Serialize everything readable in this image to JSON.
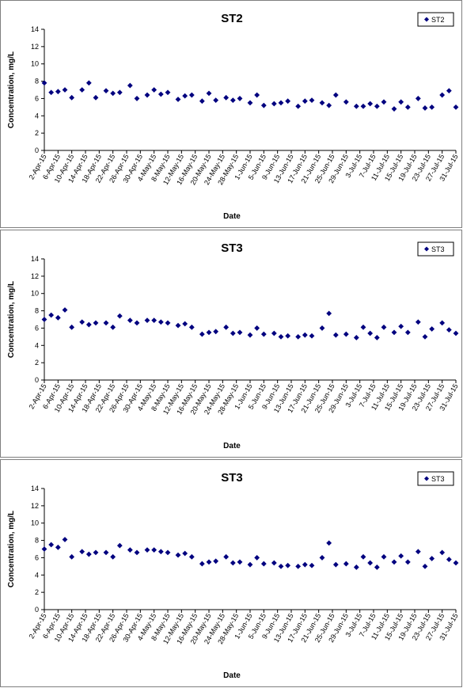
{
  "marker_color": "#00007f",
  "chart_data": [
    {
      "type": "scatter",
      "title": "ST2",
      "xlabel": "Date",
      "ylabel": "Concentration, mg/L",
      "ylim": [
        0,
        14
      ],
      "yticks": [
        0,
        2,
        4,
        6,
        8,
        10,
        12,
        14
      ],
      "xticks": [
        "2-Apr-15",
        "6-Apr-15",
        "10-Apr-15",
        "14-Apr-15",
        "18-Apr-15",
        "22-Apr-15",
        "26-Apr-15",
        "30-Apr-15",
        "4-May-15",
        "8-May-15",
        "12-May-15",
        "16-May-15",
        "20-May-15",
        "24-May-15",
        "28-May-15",
        "1-Jun-15",
        "5-Jun-15",
        "9-Jun-15",
        "13-Jun-15",
        "17-Jun-15",
        "21-Jun-15",
        "25-Jun-15",
        "29-Jun-15",
        "3-Jul-15",
        "7-Jul-15",
        "11-Jul-15",
        "15-Jul-15",
        "19-Jul-15",
        "23-Jul-15",
        "27-Jul-15",
        "31-Jul-15"
      ],
      "grid": false,
      "legend_position": "top-right",
      "series": [
        {
          "name": "ST2",
          "x": [
            "2-Apr-15",
            "4-Apr-15",
            "6-Apr-15",
            "8-Apr-15",
            "10-Apr-15",
            "13-Apr-15",
            "15-Apr-15",
            "17-Apr-15",
            "20-Apr-15",
            "22-Apr-15",
            "24-Apr-15",
            "27-Apr-15",
            "29-Apr-15",
            "2-May-15",
            "4-May-15",
            "6-May-15",
            "8-May-15",
            "11-May-15",
            "13-May-15",
            "15-May-15",
            "18-May-15",
            "20-May-15",
            "22-May-15",
            "25-May-15",
            "27-May-15",
            "29-May-15",
            "1-Jun-15",
            "3-Jun-15",
            "5-Jun-15",
            "8-Jun-15",
            "10-Jun-15",
            "12-Jun-15",
            "15-Jun-15",
            "17-Jun-15",
            "19-Jun-15",
            "22-Jun-15",
            "24-Jun-15",
            "26-Jun-15",
            "29-Jun-15",
            "2-Jul-15",
            "4-Jul-15",
            "6-Jul-15",
            "8-Jul-15",
            "10-Jul-15",
            "13-Jul-15",
            "15-Jul-15",
            "17-Jul-15",
            "20-Jul-15",
            "22-Jul-15",
            "24-Jul-15",
            "27-Jul-15",
            "29-Jul-15",
            "31-Jul-15"
          ],
          "y": [
            7.8,
            6.7,
            6.8,
            7.0,
            6.1,
            7.0,
            7.8,
            6.1,
            6.9,
            6.6,
            6.7,
            7.5,
            6.0,
            6.4,
            7.0,
            6.5,
            6.7,
            5.9,
            6.3,
            6.4,
            5.7,
            6.6,
            5.8,
            6.1,
            5.8,
            6.0,
            5.5,
            6.4,
            5.2,
            5.4,
            5.5,
            5.7,
            5.1,
            5.7,
            5.8,
            5.5,
            5.2,
            6.4,
            5.6,
            5.1,
            5.1,
            5.4,
            5.1,
            5.6,
            4.8,
            5.6,
            5.0,
            6.0,
            4.9,
            5.0,
            6.4,
            6.9,
            5.0
          ]
        }
      ]
    },
    {
      "type": "scatter",
      "title": "ST3",
      "xlabel": "Date",
      "ylabel": "Concentration, mg/L",
      "ylim": [
        0,
        14
      ],
      "yticks": [
        0,
        2,
        4,
        6,
        8,
        10,
        12,
        14
      ],
      "xticks": [
        "2-Apr-15",
        "6-Apr-15",
        "10-Apr-15",
        "14-Apr-15",
        "18-Apr-15",
        "22-Apr-15",
        "26-Apr-15",
        "30-Apr-15",
        "4-May-15",
        "8-May-15",
        "12-May-15",
        "16-May-15",
        "20-May-15",
        "24-May-15",
        "28-May-15",
        "1-Jun-15",
        "5-Jun-15",
        "9-Jun-15",
        "13-Jun-15",
        "17-Jun-15",
        "21-Jun-15",
        "25-Jun-15",
        "29-Jun-15",
        "3-Jul-15",
        "7-Jul-15",
        "11-Jul-15",
        "15-Jul-15",
        "19-Jul-15",
        "23-Jul-15",
        "27-Jul-15",
        "31-Jul-15"
      ],
      "grid": false,
      "legend_position": "top-right",
      "series": [
        {
          "name": "ST3",
          "x": [
            "2-Apr-15",
            "4-Apr-15",
            "6-Apr-15",
            "8-Apr-15",
            "10-Apr-15",
            "13-Apr-15",
            "15-Apr-15",
            "17-Apr-15",
            "20-Apr-15",
            "22-Apr-15",
            "24-Apr-15",
            "27-Apr-15",
            "29-Apr-15",
            "2-May-15",
            "4-May-15",
            "6-May-15",
            "8-May-15",
            "11-May-15",
            "13-May-15",
            "15-May-15",
            "18-May-15",
            "20-May-15",
            "22-May-15",
            "25-May-15",
            "27-May-15",
            "29-May-15",
            "1-Jun-15",
            "3-Jun-15",
            "5-Jun-15",
            "8-Jun-15",
            "10-Jun-15",
            "12-Jun-15",
            "15-Jun-15",
            "17-Jun-15",
            "19-Jun-15",
            "22-Jun-15",
            "24-Jun-15",
            "26-Jun-15",
            "29-Jun-15",
            "2-Jul-15",
            "4-Jul-15",
            "6-Jul-15",
            "8-Jul-15",
            "10-Jul-15",
            "13-Jul-15",
            "15-Jul-15",
            "17-Jul-15",
            "20-Jul-15",
            "22-Jul-15",
            "24-Jul-15",
            "27-Jul-15",
            "29-Jul-15",
            "31-Jul-15"
          ],
          "y": [
            7.0,
            7.5,
            7.2,
            8.1,
            6.1,
            6.7,
            6.4,
            6.6,
            6.6,
            6.1,
            7.4,
            6.9,
            6.6,
            6.9,
            6.9,
            6.7,
            6.6,
            6.3,
            6.5,
            6.1,
            5.3,
            5.5,
            5.6,
            6.1,
            5.4,
            5.5,
            5.2,
            6.0,
            5.3,
            5.4,
            5.0,
            5.1,
            5.0,
            5.2,
            5.1,
            6.0,
            7.7,
            5.2,
            5.3,
            4.9,
            6.1,
            5.4,
            4.9,
            6.1,
            5.5,
            6.2,
            5.5,
            6.7,
            5.0,
            5.9,
            6.6,
            5.8,
            5.4
          ]
        }
      ]
    },
    {
      "type": "scatter",
      "title": "ST3",
      "xlabel": "Date",
      "ylabel": "Concentration, mg/L",
      "ylim": [
        0,
        14
      ],
      "yticks": [
        0,
        2,
        4,
        6,
        8,
        10,
        12,
        14
      ],
      "xticks": [
        "2-Apr-15",
        "6-Apr-15",
        "10-Apr-15",
        "14-Apr-15",
        "18-Apr-15",
        "22-Apr-15",
        "26-Apr-15",
        "30-Apr-15",
        "4-May-15",
        "8-May-15",
        "12-May-15",
        "16-May-15",
        "20-May-15",
        "24-May-15",
        "28-May-15",
        "1-Jun-15",
        "5-Jun-15",
        "9-Jun-15",
        "13-Jun-15",
        "17-Jun-15",
        "21-Jun-15",
        "25-Jun-15",
        "29-Jun-15",
        "3-Jul-15",
        "7-Jul-15",
        "11-Jul-15",
        "15-Jul-15",
        "19-Jul-15",
        "23-Jul-15",
        "27-Jul-15",
        "31-Jul-15"
      ],
      "grid": false,
      "legend_position": "top-right",
      "series": [
        {
          "name": "ST3",
          "x": [
            "2-Apr-15",
            "4-Apr-15",
            "6-Apr-15",
            "8-Apr-15",
            "10-Apr-15",
            "13-Apr-15",
            "15-Apr-15",
            "17-Apr-15",
            "20-Apr-15",
            "22-Apr-15",
            "24-Apr-15",
            "27-Apr-15",
            "29-Apr-15",
            "2-May-15",
            "4-May-15",
            "6-May-15",
            "8-May-15",
            "11-May-15",
            "13-May-15",
            "15-May-15",
            "18-May-15",
            "20-May-15",
            "22-May-15",
            "25-May-15",
            "27-May-15",
            "29-May-15",
            "1-Jun-15",
            "3-Jun-15",
            "5-Jun-15",
            "8-Jun-15",
            "10-Jun-15",
            "12-Jun-15",
            "15-Jun-15",
            "17-Jun-15",
            "19-Jun-15",
            "22-Jun-15",
            "24-Jun-15",
            "26-Jun-15",
            "29-Jun-15",
            "2-Jul-15",
            "4-Jul-15",
            "6-Jul-15",
            "8-Jul-15",
            "10-Jul-15",
            "13-Jul-15",
            "15-Jul-15",
            "17-Jul-15",
            "20-Jul-15",
            "22-Jul-15",
            "24-Jul-15",
            "27-Jul-15",
            "29-Jul-15",
            "31-Jul-15"
          ],
          "y": [
            7.0,
            7.5,
            7.2,
            8.1,
            6.1,
            6.7,
            6.4,
            6.6,
            6.6,
            6.1,
            7.4,
            6.9,
            6.6,
            6.9,
            6.9,
            6.7,
            6.6,
            6.3,
            6.5,
            6.1,
            5.3,
            5.5,
            5.6,
            6.1,
            5.4,
            5.5,
            5.2,
            6.0,
            5.3,
            5.4,
            5.0,
            5.1,
            5.0,
            5.2,
            5.1,
            6.0,
            7.7,
            5.2,
            5.3,
            4.9,
            6.1,
            5.4,
            4.9,
            6.1,
            5.5,
            6.2,
            5.5,
            6.7,
            5.0,
            5.9,
            6.6,
            5.8,
            5.4
          ]
        }
      ]
    }
  ]
}
